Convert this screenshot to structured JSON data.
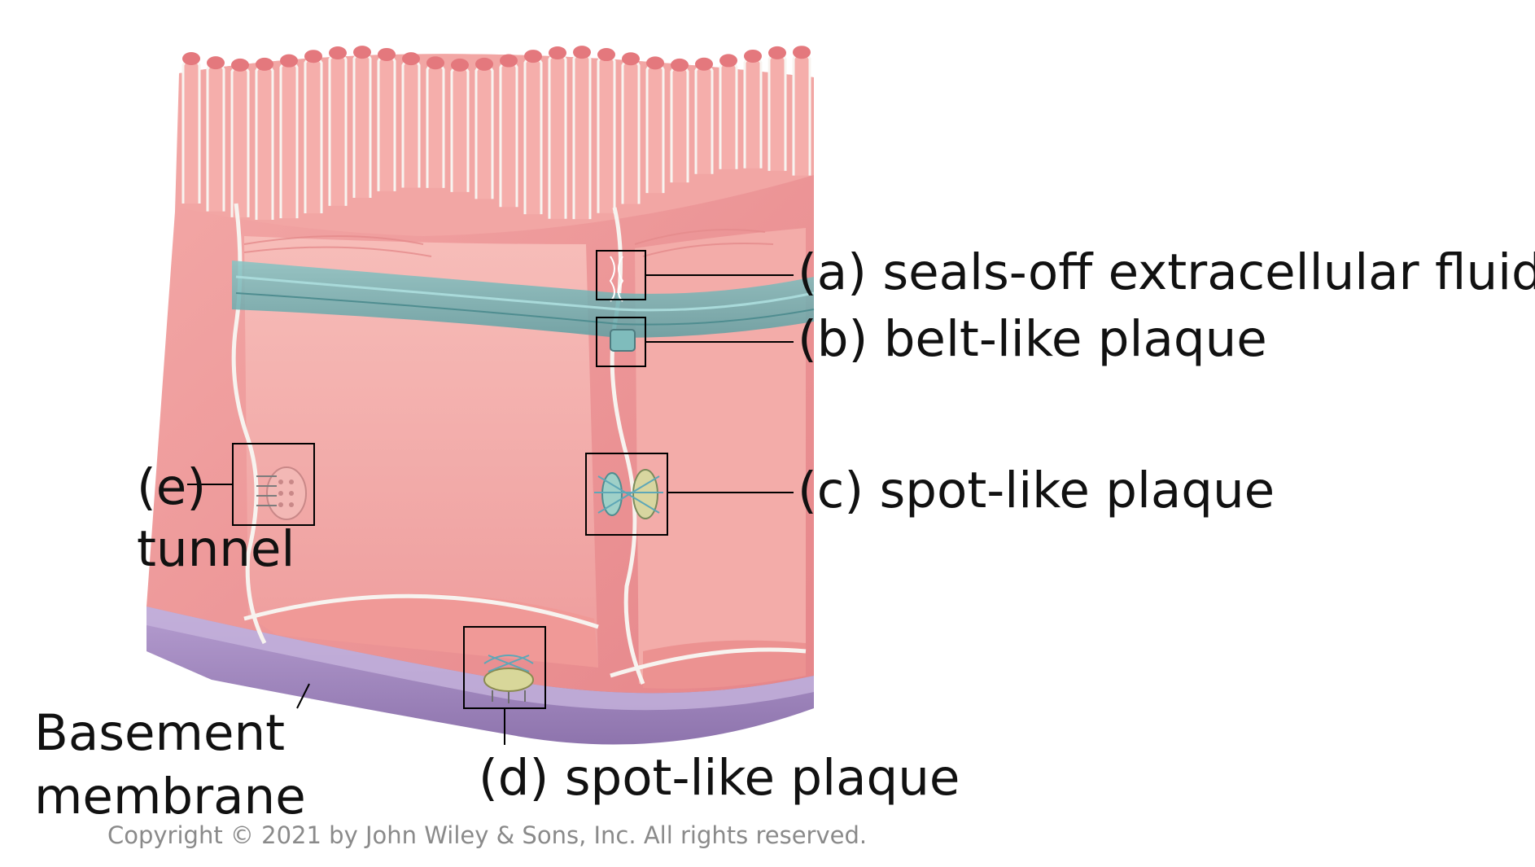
{
  "labels": {
    "a": "(a) seals-off extracellular fluid",
    "b": "(b) belt-like plaque",
    "c": "(c) spot-like plaque",
    "d": "(d) spot-like plaque",
    "e_letter": "(e)",
    "e_word": "tunnel",
    "basement_1": "Basement",
    "basement_2": "membrane"
  },
  "copyright": "Copyright © 2021 by John Wiley & Sons, Inc. All rights reserved.",
  "colors": {
    "cell": "#f09a98",
    "cell_dark": "#e07f80",
    "cell_light": "#f6b7b4",
    "membrane_line": "#f4f1ee",
    "belt_band": "#6fb2b2",
    "basement": "#a98fc4",
    "basement_dark": "#8a6fa8",
    "box_stroke": "#000000"
  }
}
